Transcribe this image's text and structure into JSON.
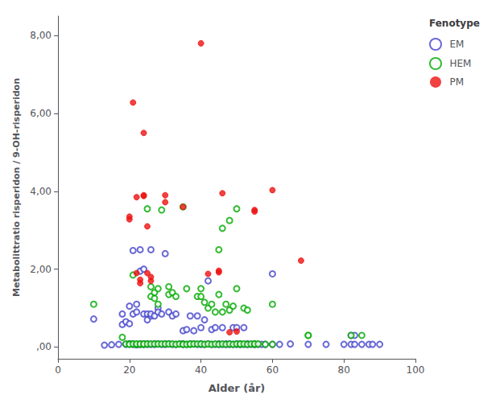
{
  "chart_data": {
    "type": "scatter",
    "xlabel": "Alder (år)",
    "ylabel": "Metabolittratio risperidon / 9-OH-risperidon",
    "xlim": [
      0,
      100
    ],
    "ylim": [
      -0.3,
      8.5
    ],
    "xticks": [
      0,
      20,
      40,
      60,
      80,
      100
    ],
    "yticks": [
      {
        "value": 0.0,
        "label": ",00"
      },
      {
        "value": 2.0,
        "label": "2,00"
      },
      {
        "value": 4.0,
        "label": "4,00"
      },
      {
        "value": 6.0,
        "label": "6,00"
      },
      {
        "value": 8.0,
        "label": "8,00"
      }
    ],
    "grid": false,
    "legend": "right",
    "legend_title": "Fenotype",
    "series": [
      {
        "name": "EM",
        "color": "#4444cc",
        "marker": "open_circle",
        "values": [
          [
            10,
            0.72
          ],
          [
            13,
            0.05
          ],
          [
            15,
            0.06
          ],
          [
            17,
            0.07
          ],
          [
            18,
            0.85
          ],
          [
            18,
            0.58
          ],
          [
            19,
            0.65
          ],
          [
            19,
            0.07
          ],
          [
            20,
            1.05
          ],
          [
            20,
            0.08
          ],
          [
            20,
            0.08
          ],
          [
            20,
            0.6
          ],
          [
            21,
            2.48
          ],
          [
            21,
            0.85
          ],
          [
            21,
            0.07
          ],
          [
            21,
            0.08
          ],
          [
            22,
            0.9
          ],
          [
            22,
            0.06
          ],
          [
            22,
            1.1
          ],
          [
            22,
            0.07
          ],
          [
            23,
            2.5
          ],
          [
            23,
            1.95
          ],
          [
            23,
            0.07
          ],
          [
            23,
            0.08
          ],
          [
            24,
            2.0
          ],
          [
            24,
            0.85
          ],
          [
            24,
            0.07
          ],
          [
            24,
            0.08
          ],
          [
            25,
            0.85
          ],
          [
            25,
            0.07
          ],
          [
            25,
            0.7
          ],
          [
            25,
            0.08
          ],
          [
            26,
            0.8
          ],
          [
            26,
            2.5
          ],
          [
            26,
            0.85
          ],
          [
            26,
            0.07
          ],
          [
            27,
            0.08
          ],
          [
            27,
            0.8
          ],
          [
            27,
            0.07
          ],
          [
            28,
            1.0
          ],
          [
            28,
            0.9
          ],
          [
            28,
            0.08
          ],
          [
            29,
            0.07
          ],
          [
            29,
            0.85
          ],
          [
            30,
            2.4
          ],
          [
            30,
            0.08
          ],
          [
            30,
            0.07
          ],
          [
            31,
            0.9
          ],
          [
            31,
            0.08
          ],
          [
            32,
            0.07
          ],
          [
            32,
            0.8
          ],
          [
            33,
            0.85
          ],
          [
            33,
            0.07
          ],
          [
            34,
            0.08
          ],
          [
            35,
            0.42
          ],
          [
            35,
            0.08
          ],
          [
            35,
            0.07
          ],
          [
            36,
            0.45
          ],
          [
            36,
            0.07
          ],
          [
            37,
            0.8
          ],
          [
            37,
            0.08
          ],
          [
            38,
            0.42
          ],
          [
            38,
            0.08
          ],
          [
            39,
            0.07
          ],
          [
            39,
            0.8
          ],
          [
            40,
            0.5
          ],
          [
            40,
            0.08
          ],
          [
            40,
            0.07
          ],
          [
            41,
            0.7
          ],
          [
            41,
            0.07
          ],
          [
            42,
            0.08
          ],
          [
            42,
            1.7
          ],
          [
            43,
            0.07
          ],
          [
            43,
            0.45
          ],
          [
            44,
            0.5
          ],
          [
            44,
            0.07
          ],
          [
            45,
            0.08
          ],
          [
            45,
            0.07
          ],
          [
            46,
            0.5
          ],
          [
            46,
            0.07
          ],
          [
            47,
            0.07
          ],
          [
            47,
            0.08
          ],
          [
            48,
            0.07
          ],
          [
            48,
            0.08
          ],
          [
            49,
            0.5
          ],
          [
            49,
            0.07
          ],
          [
            50,
            0.5
          ],
          [
            50,
            0.07
          ],
          [
            50,
            0.08
          ],
          [
            51,
            0.07
          ],
          [
            51,
            0.08
          ],
          [
            52,
            0.5
          ],
          [
            52,
            0.07
          ],
          [
            53,
            0.07
          ],
          [
            53,
            0.08
          ],
          [
            54,
            0.07
          ],
          [
            55,
            0.08
          ],
          [
            55,
            0.07
          ],
          [
            56,
            0.07
          ],
          [
            57,
            0.07
          ],
          [
            58,
            0.07
          ],
          [
            60,
            1.88
          ],
          [
            60,
            0.07
          ],
          [
            62,
            0.07
          ],
          [
            65,
            0.08
          ],
          [
            70,
            0.07
          ],
          [
            75,
            0.07
          ],
          [
            80,
            0.07
          ],
          [
            82,
            0.3
          ],
          [
            82,
            0.07
          ],
          [
            83,
            0.3
          ],
          [
            83,
            0.07
          ],
          [
            85,
            0.07
          ],
          [
            87,
            0.07
          ],
          [
            88,
            0.07
          ],
          [
            90,
            0.07
          ]
        ]
      },
      {
        "name": "HEM",
        "color": "#00aa00",
        "marker": "open_circle",
        "values": [
          [
            10,
            1.1
          ],
          [
            18,
            0.25
          ],
          [
            19,
            0.08
          ],
          [
            20,
            0.08
          ],
          [
            20,
            0.07
          ],
          [
            21,
            0.08
          ],
          [
            21,
            1.85
          ],
          [
            22,
            0.07
          ],
          [
            22,
            0.08
          ],
          [
            23,
            0.07
          ],
          [
            23,
            0.08
          ],
          [
            24,
            0.07
          ],
          [
            24,
            0.08
          ],
          [
            25,
            0.08
          ],
          [
            25,
            3.55
          ],
          [
            26,
            0.08
          ],
          [
            26,
            1.55
          ],
          [
            26,
            1.3
          ],
          [
            27,
            0.08
          ],
          [
            27,
            1.4
          ],
          [
            27,
            1.25
          ],
          [
            28,
            0.08
          ],
          [
            28,
            1.1
          ],
          [
            28,
            1.5
          ],
          [
            29,
            0.08
          ],
          [
            29,
            3.52
          ],
          [
            30,
            0.08
          ],
          [
            31,
            0.08
          ],
          [
            31,
            1.55
          ],
          [
            31,
            1.35
          ],
          [
            32,
            0.08
          ],
          [
            32,
            1.4
          ],
          [
            33,
            0.07
          ],
          [
            33,
            1.3
          ],
          [
            34,
            0.08
          ],
          [
            35,
            3.6
          ],
          [
            35,
            0.08
          ],
          [
            35,
            0.07
          ],
          [
            36,
            0.07
          ],
          [
            36,
            1.5
          ],
          [
            37,
            0.07
          ],
          [
            37,
            0.08
          ],
          [
            38,
            0.08
          ],
          [
            39,
            0.08
          ],
          [
            39,
            1.3
          ],
          [
            40,
            0.08
          ],
          [
            40,
            1.5
          ],
          [
            40,
            1.3
          ],
          [
            41,
            1.15
          ],
          [
            41,
            0.07
          ],
          [
            42,
            0.08
          ],
          [
            42,
            1.0
          ],
          [
            43,
            1.1
          ],
          [
            43,
            0.07
          ],
          [
            44,
            0.08
          ],
          [
            44,
            0.9
          ],
          [
            45,
            2.5
          ],
          [
            45,
            1.35
          ],
          [
            45,
            0.07
          ],
          [
            46,
            0.08
          ],
          [
            46,
            0.9
          ],
          [
            46,
            3.05
          ],
          [
            47,
            1.1
          ],
          [
            47,
            0.07
          ],
          [
            48,
            0.08
          ],
          [
            48,
            0.95
          ],
          [
            48,
            3.25
          ],
          [
            49,
            1.05
          ],
          [
            49,
            0.07
          ],
          [
            50,
            0.08
          ],
          [
            50,
            1.5
          ],
          [
            50,
            3.55
          ],
          [
            51,
            0.07
          ],
          [
            51,
            0.08
          ],
          [
            52,
            0.08
          ],
          [
            52,
            1.0
          ],
          [
            53,
            0.07
          ],
          [
            53,
            0.95
          ],
          [
            54,
            0.08
          ],
          [
            55,
            0.07
          ],
          [
            55,
            0.08
          ],
          [
            56,
            0.08
          ],
          [
            58,
            0.07
          ],
          [
            60,
            0.07
          ],
          [
            60,
            1.1
          ],
          [
            70,
            0.3
          ],
          [
            70,
            0.3
          ],
          [
            82,
            0.3
          ],
          [
            85,
            0.3
          ]
        ]
      },
      {
        "name": "PM",
        "color": "#ee1111",
        "marker": "circle",
        "values": [
          [
            20,
            3.35
          ],
          [
            20,
            3.28
          ],
          [
            21,
            6.28
          ],
          [
            22,
            3.85
          ],
          [
            22,
            1.9
          ],
          [
            23,
            1.73
          ],
          [
            23,
            1.64
          ],
          [
            24,
            5.5
          ],
          [
            24,
            3.88
          ],
          [
            24,
            3.9
          ],
          [
            25,
            1.9
          ],
          [
            25,
            3.1
          ],
          [
            26,
            1.7
          ],
          [
            26,
            1.8
          ],
          [
            30,
            3.9
          ],
          [
            30,
            3.72
          ],
          [
            35,
            3.6
          ],
          [
            40,
            7.8
          ],
          [
            42,
            1.88
          ],
          [
            45,
            1.92
          ],
          [
            45,
            1.96
          ],
          [
            46,
            3.95
          ],
          [
            48,
            0.38
          ],
          [
            50,
            0.4
          ],
          [
            55,
            3.48
          ],
          [
            55,
            3.52
          ],
          [
            60,
            4.03
          ],
          [
            68,
            2.22
          ]
        ]
      }
    ]
  }
}
